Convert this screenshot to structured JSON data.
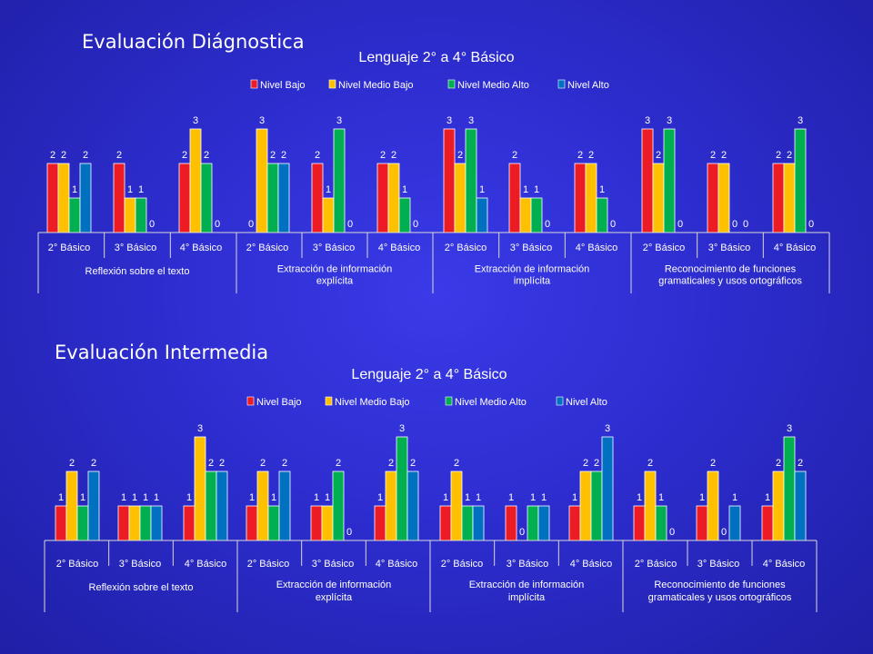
{
  "headings": [
    "Evaluación Diágnostica",
    "Evaluación Intermedia"
  ],
  "chart_data": [
    {
      "type": "bar",
      "title": "Lenguaje 2° a 4° Básico",
      "legend_position": "top",
      "grid": false,
      "ylim": [
        0,
        3
      ],
      "series_colors": [
        "#ed1c24",
        "#ffc000",
        "#00b050",
        "#0070c0"
      ],
      "groups": [
        {
          "label": "Reflexión sobre el texto",
          "categories": [
            "2° Básico",
            "3° Básico",
            "4° Básico"
          ]
        },
        {
          "label": "Extracción de información explícita",
          "categories": [
            "2° Básico",
            "3° Básico",
            "4° Básico"
          ]
        },
        {
          "label": "Extracción de información implícita",
          "categories": [
            "2° Básico",
            "3° Básico",
            "4° Básico"
          ]
        },
        {
          "label": "Reconocimiento de funciones gramaticales y usos ortográficos",
          "categories": [
            "2° Básico",
            "3° Básico",
            "4° Básico"
          ]
        }
      ],
      "series": [
        {
          "name": "Nivel Bajo",
          "values": [
            2,
            2,
            2,
            0,
            2,
            2,
            3,
            2,
            2,
            3,
            2,
            2
          ]
        },
        {
          "name": "Nivel  Medio Bajo",
          "values": [
            2,
            1,
            3,
            3,
            1,
            2,
            2,
            1,
            2,
            2,
            2,
            2
          ]
        },
        {
          "name": "Nivel Medio Alto",
          "values": [
            1,
            1,
            2,
            2,
            3,
            1,
            3,
            1,
            1,
            3,
            0,
            3
          ]
        },
        {
          "name": "Nivel Alto",
          "values": [
            2,
            0,
            0,
            2,
            0,
            0,
            1,
            0,
            0,
            0,
            0,
            0
          ]
        }
      ]
    },
    {
      "type": "bar",
      "title": "Lenguaje 2° a 4° Básico",
      "legend_position": "top",
      "grid": false,
      "ylim": [
        0,
        3
      ],
      "series_colors": [
        "#ed1c24",
        "#ffc000",
        "#00b050",
        "#0070c0"
      ],
      "groups": [
        {
          "label": "Reflexión sobre el texto",
          "categories": [
            "2° Básico",
            "3° Básico",
            "4° Básico"
          ]
        },
        {
          "label": "Extracción de información explícita",
          "categories": [
            "2° Básico",
            "3° Básico",
            "4° Básico"
          ]
        },
        {
          "label": "Extracción de información implícita",
          "categories": [
            "2° Básico",
            "3° Básico",
            "4° Básico"
          ]
        },
        {
          "label": "Reconocimiento de funciones gramaticales y usos ortográficos",
          "categories": [
            "2° Básico",
            "3° Básico",
            "4° Básico"
          ]
        }
      ],
      "series": [
        {
          "name": "Nivel Bajo",
          "values": [
            1,
            1,
            1,
            1,
            1,
            1,
            1,
            1,
            1,
            1,
            1,
            1
          ]
        },
        {
          "name": "Nivel  Medio Bajo",
          "values": [
            2,
            1,
            3,
            2,
            1,
            2,
            2,
            0,
            2,
            2,
            2,
            2
          ]
        },
        {
          "name": "Nivel Medio Alto",
          "values": [
            1,
            1,
            2,
            1,
            2,
            3,
            1,
            1,
            2,
            1,
            0,
            3
          ]
        },
        {
          "name": "Nivel Alto",
          "values": [
            2,
            1,
            2,
            2,
            0,
            2,
            1,
            1,
            3,
            0,
            1,
            2
          ]
        }
      ]
    }
  ]
}
